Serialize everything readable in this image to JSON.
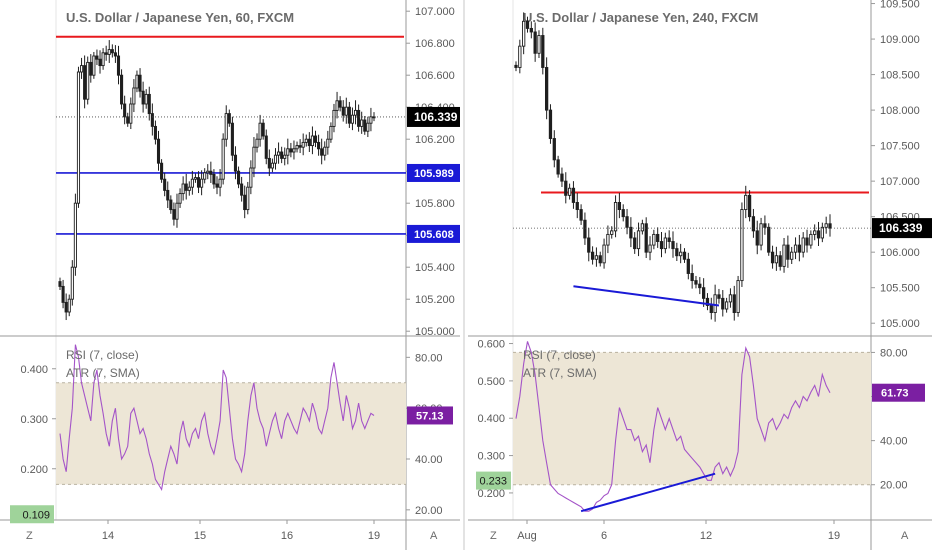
{
  "colors": {
    "up": "#2a2a2a",
    "down": "#2a2a2a",
    "resistance": "#e8191e",
    "support": "#1a1ad6",
    "rsi": "#a454c8",
    "rsi_band": "#ede6d6",
    "grid": "#d9d9d9",
    "panel_border": "#9a9a9a",
    "atr_badge": "#9fd39a",
    "rsi_badge": "#7b1fa2",
    "price_badge": "#000000",
    "level_badge": "#1a1ad6"
  },
  "ui": {
    "z_label": "Z",
    "a_label": "A"
  },
  "chart_data": [
    {
      "id": "left",
      "type": "candlestick",
      "title": "U.S. Dollar / Japanese Yen, 60, FXCM",
      "x_ticks": [
        "14",
        "15",
        "16",
        "19"
      ],
      "y_ticks": [
        "107.000",
        "106.800",
        "106.600",
        "106.400",
        "106.200",
        "106.000",
        "105.800",
        "105.600",
        "105.400",
        "105.200",
        "105.000"
      ],
      "ylim": [
        104.97,
        107.07
      ],
      "current_price": "106.339",
      "current_price_value": 106.339,
      "resistance_line": 106.84,
      "support_lines": [
        {
          "label": "105.989",
          "value": 105.989
        },
        {
          "label": "105.608",
          "value": 105.608
        }
      ],
      "closes": [
        105.28,
        105.18,
        105.12,
        105.2,
        105.4,
        105.8,
        106.62,
        106.66,
        106.45,
        106.68,
        106.6,
        106.72,
        106.7,
        106.66,
        106.74,
        106.73,
        106.76,
        106.74,
        106.72,
        106.6,
        106.42,
        106.34,
        106.3,
        106.42,
        106.52,
        106.6,
        106.5,
        106.42,
        106.48,
        106.36,
        106.28,
        106.2,
        106.05,
        105.95,
        105.88,
        105.82,
        105.76,
        105.7,
        105.8,
        105.86,
        105.92,
        105.88,
        105.9,
        105.95,
        105.96,
        105.9,
        105.95,
        105.99,
        106.0,
        105.98,
        105.92,
        105.9,
        105.95,
        106.2,
        106.36,
        106.3,
        106.1,
        106.0,
        105.92,
        105.85,
        105.76,
        105.9,
        106.02,
        106.15,
        106.2,
        106.3,
        106.22,
        106.08,
        106.02,
        106.05,
        106.1,
        106.12,
        106.08,
        106.1,
        106.14,
        106.12,
        106.14,
        106.16,
        106.15,
        106.18,
        106.2,
        106.16,
        106.22,
        106.18,
        106.14,
        106.1,
        106.15,
        106.2,
        106.28,
        106.38,
        106.44,
        106.4,
        106.35,
        106.4,
        106.3,
        106.35,
        106.38,
        106.28,
        106.32,
        106.25,
        106.3,
        106.34,
        106.339
      ],
      "rsi_axis_ticks": [
        "80.00",
        "60.00",
        "40.00",
        "20.00"
      ],
      "rsi_range": [
        16,
        88
      ],
      "rsi_band": [
        30,
        70
      ],
      "rsi_label": "RSI (7, close)",
      "rsi_value": "57.13",
      "rsi_value_num": 57.13,
      "rsi": [
        50,
        40,
        35,
        48,
        60,
        85,
        80,
        70,
        65,
        60,
        55,
        70,
        75,
        65,
        58,
        50,
        45,
        55,
        60,
        48,
        40,
        42,
        45,
        58,
        60,
        55,
        50,
        52,
        48,
        42,
        38,
        32,
        30,
        28,
        35,
        40,
        45,
        42,
        38,
        50,
        55,
        48,
        45,
        50,
        52,
        48,
        55,
        58,
        50,
        45,
        42,
        48,
        55,
        75,
        72,
        60,
        48,
        40,
        38,
        35,
        42,
        55,
        65,
        70,
        60,
        55,
        52,
        45,
        50,
        55,
        58,
        52,
        48,
        55,
        58,
        55,
        52,
        50,
        55,
        60,
        58,
        55,
        62,
        58,
        52,
        50,
        55,
        60,
        72,
        78,
        70,
        62,
        55,
        65,
        60,
        52,
        55,
        62,
        55,
        52,
        55,
        58,
        57.13
      ],
      "atr_axis_ticks": [
        "0.400",
        "0.300",
        "0.200"
      ],
      "atr_ticks_values": [
        0.4,
        0.3,
        0.2
      ],
      "atr_range": [
        0.0975,
        0.4635
      ],
      "atr_label": "ATR (7, SMA)",
      "atr_value": "0.109",
      "atr_value_num": 0.109
    },
    {
      "id": "right",
      "type": "candlestick",
      "title": "U.S. Dollar / Japanese Yen, 240, FXCM",
      "x_ticks": [
        "Aug",
        "6",
        "12",
        "19"
      ],
      "y_ticks": [
        "109.500",
        "109.000",
        "108.500",
        "108.000",
        "107.500",
        "107.000",
        "106.500",
        "106.000",
        "105.500",
        "105.000"
      ],
      "ylim": [
        104.82,
        109.55
      ],
      "current_price": "106.339",
      "current_price_value": 106.339,
      "resistance_line": 106.84,
      "support_lines": [],
      "closes": [
        108.6,
        108.9,
        109.25,
        109.15,
        109.1,
        108.8,
        109.05,
        108.6,
        108.0,
        107.6,
        107.3,
        107.1,
        107.0,
        106.8,
        106.9,
        106.7,
        106.6,
        106.45,
        106.2,
        106.0,
        105.9,
        105.95,
        105.85,
        106.1,
        106.25,
        106.3,
        106.7,
        106.6,
        106.5,
        106.35,
        106.2,
        106.05,
        106.3,
        106.4,
        106.0,
        106.1,
        106.25,
        106.15,
        106.05,
        106.2,
        106.15,
        106.05,
        105.95,
        106.0,
        105.9,
        105.7,
        105.6,
        105.55,
        105.5,
        105.35,
        105.25,
        105.15,
        105.4,
        105.35,
        105.2,
        105.3,
        105.4,
        105.15,
        105.6,
        106.6,
        106.8,
        106.5,
        106.3,
        106.1,
        106.4,
        106.35,
        106.0,
        105.85,
        105.95,
        105.8,
        106.1,
        105.9,
        106.0,
        106.1,
        106.0,
        106.2,
        106.1,
        106.25,
        106.3,
        106.2,
        106.35,
        106.4,
        106.339
      ],
      "rsi_axis_ticks": [
        "80.00",
        "60.00",
        "40.00",
        "20.00"
      ],
      "rsi_range": [
        4,
        87
      ],
      "rsi_band": [
        20,
        80
      ],
      "rsi_label": "RSI (7, close)",
      "rsi_value": "61.73",
      "rsi_value_num": 61.73,
      "rsi": [
        50,
        60,
        75,
        85,
        80,
        70,
        55,
        40,
        30,
        20,
        18,
        16,
        15,
        14,
        13,
        12,
        11,
        10,
        8,
        8,
        9,
        12,
        13,
        15,
        16,
        20,
        40,
        55,
        50,
        45,
        45,
        40,
        42,
        35,
        38,
        30,
        45,
        55,
        50,
        45,
        50,
        45,
        40,
        42,
        36,
        34,
        32,
        30,
        28,
        25,
        22,
        22,
        28,
        30,
        25,
        28,
        24,
        28,
        35,
        70,
        82,
        78,
        65,
        50,
        45,
        40,
        48,
        50,
        45,
        48,
        52,
        50,
        55,
        58,
        55,
        60,
        58,
        62,
        65,
        60,
        70,
        65,
        61.73
      ],
      "atr_axis_ticks": [
        "0.600",
        "0.500",
        "0.400",
        "0.300",
        "0.200"
      ],
      "atr_ticks_values": [
        0.6,
        0.5,
        0.4,
        0.3,
        0.2
      ],
      "atr_range": [
        0.1275,
        0.6175
      ],
      "atr_label": "ATR (7, SMA)",
      "atr_value": "0.233",
      "atr_value_num": 0.233,
      "trend_main_idx": [
        15,
        53
      ],
      "trend_main_vals": [
        105.52,
        105.25
      ],
      "trend_rsi_idx": [
        17,
        52
      ],
      "trend_rsi_vals": [
        8,
        25
      ]
    }
  ]
}
